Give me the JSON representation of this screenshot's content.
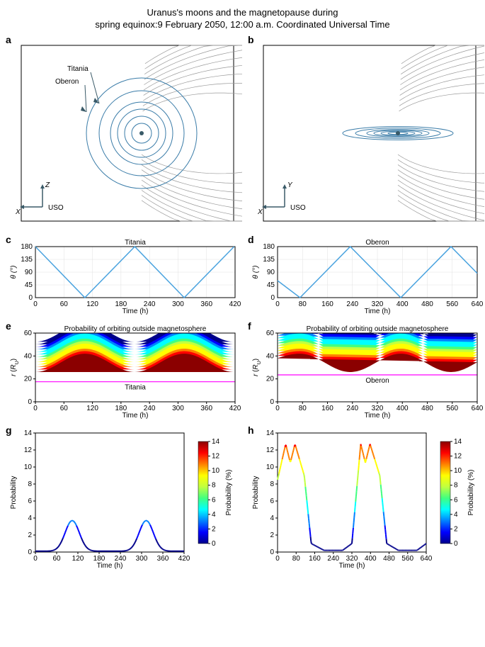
{
  "title_line1": "Uranus's moons and the magnetopause during",
  "title_line2": "spring equinox:9 February 2050, 12:00 a.m. Coordinated Universal Time",
  "panels": {
    "a": {
      "label": "a",
      "titania_label": "Titania",
      "oberon_label": "Oberon",
      "axis_z": "Z",
      "axis_x": "X",
      "frame_label": "USO",
      "orbit_color": "#3a7ca8",
      "magneto_color": "#999",
      "planet_color": "#3a5a68"
    },
    "b": {
      "label": "b",
      "axis_y": "Y",
      "axis_x": "X",
      "frame_label": "USO",
      "orbit_color": "#3a7ca8",
      "magneto_color": "#999",
      "planet_color": "#3a5a68"
    },
    "c": {
      "label": "c",
      "subtitle": "Titania",
      "xlabel": "Time (h)",
      "ylabel": "θ (°)",
      "xmin": 0,
      "xmax": 420,
      "xstep": 60,
      "ymin": 0,
      "ymax": 180,
      "ystep": 45,
      "line_color": "#4aa3df",
      "data": [
        [
          0,
          180
        ],
        [
          104,
          0
        ],
        [
          209,
          180
        ],
        [
          313,
          0
        ],
        [
          418,
          180
        ]
      ]
    },
    "d": {
      "label": "d",
      "subtitle": "Oberon",
      "xlabel": "Time (h)",
      "ylabel": "θ (°)",
      "xmin": 0,
      "xmax": 640,
      "xstep": 80,
      "ymin": 0,
      "ymax": 180,
      "ystep": 45,
      "line_color": "#4aa3df",
      "data": [
        [
          0,
          60
        ],
        [
          72,
          0
        ],
        [
          233,
          180
        ],
        [
          395,
          0
        ],
        [
          556,
          180
        ],
        [
          640,
          86
        ]
      ]
    },
    "e": {
      "label": "e",
      "subtitle": "Probability of orbiting outside magnetosphere",
      "xlabel": "Time (h)",
      "ylabel": "r (R_U)",
      "xmin": 0,
      "xmax": 420,
      "xstep": 60,
      "ymin": 0,
      "ymax": 60,
      "ystep": 20,
      "moon_label": "Titania",
      "moon_r": 17.5,
      "moon_color": "#ff00ff",
      "bg_color": "#00008b"
    },
    "f": {
      "label": "f",
      "subtitle": "Probability of orbiting outside magnetosphere",
      "xlabel": "Time (h)",
      "ylabel": "r (R_U)",
      "xmin": 0,
      "xmax": 640,
      "xstep": 80,
      "ymin": 0,
      "ymax": 60,
      "ystep": 20,
      "moon_label": "Oberon",
      "moon_r": 23.5,
      "moon_color": "#ff00ff",
      "bg_color": "#00008b"
    },
    "g": {
      "label": "g",
      "xlabel": "Time (h)",
      "ylabel": "Probability",
      "xmin": 0,
      "xmax": 420,
      "xstep": 60,
      "ymin": 0,
      "ymax": 14,
      "ystep": 2,
      "colorbar_label": "Probability (%)",
      "colorbar_max": 14,
      "peaks": [
        [
          104,
          3.6
        ],
        [
          313,
          3.6
        ]
      ]
    },
    "h": {
      "label": "h",
      "xlabel": "Time (h)",
      "ylabel": "Probability",
      "xmin": 0,
      "xmax": 640,
      "xstep": 80,
      "ymin": 0,
      "ymax": 14,
      "ystep": 2,
      "colorbar_label": "Probability (%)",
      "colorbar_max": 14,
      "data_h": [
        [
          0,
          8.5
        ],
        [
          35,
          12.7
        ],
        [
          55,
          10.5
        ],
        [
          75,
          12.7
        ],
        [
          115,
          9
        ],
        [
          145,
          1
        ],
        [
          200,
          0.2
        ],
        [
          280,
          0.2
        ],
        [
          320,
          1
        ],
        [
          358,
          12.7
        ],
        [
          378,
          10.5
        ],
        [
          398,
          12.7
        ],
        [
          440,
          9
        ],
        [
          470,
          1
        ],
        [
          520,
          0.2
        ],
        [
          600,
          0.2
        ],
        [
          640,
          1
        ]
      ]
    }
  },
  "jet_colormap": [
    "#00008b",
    "#0000ff",
    "#0080ff",
    "#00ffff",
    "#40ff80",
    "#c0ff40",
    "#ffff00",
    "#ff8000",
    "#ff0000",
    "#8b0000"
  ]
}
